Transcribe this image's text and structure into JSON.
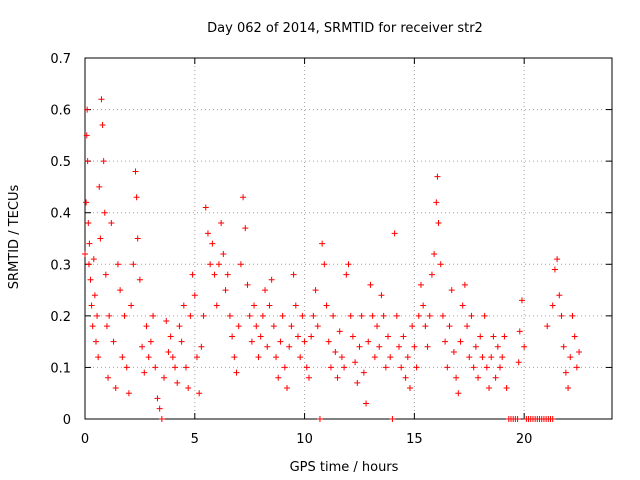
{
  "chart_data": {
    "type": "scatter",
    "title": "Day 062 of 2014, SRMTID for receiver str2",
    "xlabel": "GPS time / hours",
    "ylabel": "SRMTID / TECUs",
    "xlim": [
      0,
      24
    ],
    "ylim": [
      0,
      0.7
    ],
    "grid": true,
    "marker": "+",
    "color": "#ff0000",
    "x_ticks": [
      0,
      5,
      10,
      15,
      20
    ],
    "x_tick_labels": [
      "0",
      "5",
      "10",
      "15",
      "20"
    ],
    "y_ticks": [
      0,
      0.1,
      0.2,
      0.3,
      0.4,
      0.5,
      0.6,
      0.7
    ],
    "y_tick_labels": [
      "0",
      "0.1",
      "0.2",
      "0.3",
      "0.4",
      "0.5",
      "0.6",
      "0.7"
    ],
    "series": [
      {
        "name": "SRMTID",
        "points": [
          [
            0.0,
            0.32
          ],
          [
            0.05,
            0.42
          ],
          [
            0.08,
            0.55
          ],
          [
            0.1,
            0.6
          ],
          [
            0.12,
            0.5
          ],
          [
            0.15,
            0.38
          ],
          [
            0.18,
            0.3
          ],
          [
            0.2,
            0.34
          ],
          [
            0.25,
            0.27
          ],
          [
            0.3,
            0.22
          ],
          [
            0.35,
            0.18
          ],
          [
            0.4,
            0.31
          ],
          [
            0.45,
            0.24
          ],
          [
            0.5,
            0.15
          ],
          [
            0.55,
            0.2
          ],
          [
            0.6,
            0.12
          ],
          [
            0.65,
            0.45
          ],
          [
            0.7,
            0.35
          ],
          [
            0.75,
            0.62
          ],
          [
            0.8,
            0.57
          ],
          [
            0.85,
            0.5
          ],
          [
            0.9,
            0.4
          ],
          [
            0.95,
            0.28
          ],
          [
            1.0,
            0.18
          ],
          [
            1.05,
            0.08
          ],
          [
            1.1,
            0.2
          ],
          [
            1.2,
            0.38
          ],
          [
            1.3,
            0.15
          ],
          [
            1.4,
            0.06
          ],
          [
            1.5,
            0.3
          ],
          [
            1.6,
            0.25
          ],
          [
            1.7,
            0.12
          ],
          [
            1.8,
            0.2
          ],
          [
            1.9,
            0.1
          ],
          [
            2.0,
            0.05
          ],
          [
            2.1,
            0.22
          ],
          [
            2.2,
            0.3
          ],
          [
            2.3,
            0.48
          ],
          [
            2.35,
            0.43
          ],
          [
            2.4,
            0.35
          ],
          [
            2.5,
            0.27
          ],
          [
            2.6,
            0.14
          ],
          [
            2.7,
            0.09
          ],
          [
            2.8,
            0.18
          ],
          [
            2.9,
            0.12
          ],
          [
            3.0,
            0.15
          ],
          [
            3.1,
            0.2
          ],
          [
            3.2,
            0.1
          ],
          [
            3.3,
            0.04
          ],
          [
            3.4,
            0.02
          ],
          [
            3.5,
            0.0
          ],
          [
            3.6,
            0.08
          ],
          [
            3.7,
            0.19
          ],
          [
            3.8,
            0.13
          ],
          [
            3.9,
            0.16
          ],
          [
            4.0,
            0.12
          ],
          [
            4.1,
            0.1
          ],
          [
            4.2,
            0.07
          ],
          [
            4.3,
            0.18
          ],
          [
            4.4,
            0.15
          ],
          [
            4.5,
            0.22
          ],
          [
            4.6,
            0.1
          ],
          [
            4.7,
            0.06
          ],
          [
            4.8,
            0.2
          ],
          [
            4.9,
            0.28
          ],
          [
            5.0,
            0.24
          ],
          [
            5.1,
            0.12
          ],
          [
            5.2,
            0.05
          ],
          [
            5.3,
            0.14
          ],
          [
            5.4,
            0.2
          ],
          [
            5.5,
            0.41
          ],
          [
            5.6,
            0.36
          ],
          [
            5.7,
            0.3
          ],
          [
            5.8,
            0.34
          ],
          [
            5.9,
            0.28
          ],
          [
            6.0,
            0.22
          ],
          [
            6.1,
            0.3
          ],
          [
            6.2,
            0.38
          ],
          [
            6.3,
            0.32
          ],
          [
            6.4,
            0.25
          ],
          [
            6.5,
            0.28
          ],
          [
            6.6,
            0.2
          ],
          [
            6.7,
            0.16
          ],
          [
            6.8,
            0.12
          ],
          [
            6.9,
            0.09
          ],
          [
            7.0,
            0.18
          ],
          [
            7.1,
            0.3
          ],
          [
            7.2,
            0.43
          ],
          [
            7.3,
            0.37
          ],
          [
            7.4,
            0.26
          ],
          [
            7.5,
            0.2
          ],
          [
            7.6,
            0.15
          ],
          [
            7.7,
            0.22
          ],
          [
            7.8,
            0.18
          ],
          [
            7.9,
            0.12
          ],
          [
            8.0,
            0.16
          ],
          [
            8.1,
            0.2
          ],
          [
            8.2,
            0.25
          ],
          [
            8.3,
            0.14
          ],
          [
            8.4,
            0.22
          ],
          [
            8.5,
            0.27
          ],
          [
            8.6,
            0.18
          ],
          [
            8.7,
            0.12
          ],
          [
            8.8,
            0.08
          ],
          [
            8.9,
            0.15
          ],
          [
            9.0,
            0.2
          ],
          [
            9.1,
            0.1
          ],
          [
            9.2,
            0.06
          ],
          [
            9.3,
            0.14
          ],
          [
            9.4,
            0.18
          ],
          [
            9.5,
            0.28
          ],
          [
            9.6,
            0.22
          ],
          [
            9.7,
            0.16
          ],
          [
            9.8,
            0.12
          ],
          [
            9.9,
            0.2
          ],
          [
            10.0,
            0.15
          ],
          [
            10.1,
            0.1
          ],
          [
            10.2,
            0.08
          ],
          [
            10.3,
            0.16
          ],
          [
            10.4,
            0.2
          ],
          [
            10.5,
            0.25
          ],
          [
            10.6,
            0.18
          ],
          [
            10.7,
            0.0
          ],
          [
            10.8,
            0.34
          ],
          [
            10.9,
            0.3
          ],
          [
            11.0,
            0.22
          ],
          [
            11.1,
            0.15
          ],
          [
            11.2,
            0.1
          ],
          [
            11.3,
            0.2
          ],
          [
            11.4,
            0.13
          ],
          [
            11.5,
            0.08
          ],
          [
            11.6,
            0.17
          ],
          [
            11.7,
            0.12
          ],
          [
            11.8,
            0.1
          ],
          [
            11.9,
            0.28
          ],
          [
            12.0,
            0.3
          ],
          [
            12.1,
            0.2
          ],
          [
            12.2,
            0.16
          ],
          [
            12.3,
            0.11
          ],
          [
            12.4,
            0.07
          ],
          [
            12.5,
            0.14
          ],
          [
            12.6,
            0.2
          ],
          [
            12.7,
            0.09
          ],
          [
            12.8,
            0.03
          ],
          [
            12.9,
            0.15
          ],
          [
            13.0,
            0.26
          ],
          [
            13.1,
            0.2
          ],
          [
            13.2,
            0.12
          ],
          [
            13.3,
            0.18
          ],
          [
            13.4,
            0.14
          ],
          [
            13.5,
            0.24
          ],
          [
            13.6,
            0.2
          ],
          [
            13.7,
            0.1
          ],
          [
            13.8,
            0.16
          ],
          [
            13.9,
            0.12
          ],
          [
            14.0,
            0.0
          ],
          [
            14.1,
            0.36
          ],
          [
            14.2,
            0.2
          ],
          [
            14.3,
            0.14
          ],
          [
            14.4,
            0.1
          ],
          [
            14.5,
            0.16
          ],
          [
            14.6,
            0.08
          ],
          [
            14.7,
            0.12
          ],
          [
            14.8,
            0.06
          ],
          [
            14.9,
            0.18
          ],
          [
            15.0,
            0.14
          ],
          [
            15.1,
            0.1
          ],
          [
            15.2,
            0.2
          ],
          [
            15.3,
            0.26
          ],
          [
            15.4,
            0.22
          ],
          [
            15.5,
            0.18
          ],
          [
            15.6,
            0.14
          ],
          [
            15.7,
            0.2
          ],
          [
            15.8,
            0.28
          ],
          [
            15.9,
            0.32
          ],
          [
            16.0,
            0.42
          ],
          [
            16.05,
            0.47
          ],
          [
            16.1,
            0.38
          ],
          [
            16.2,
            0.3
          ],
          [
            16.3,
            0.2
          ],
          [
            16.4,
            0.15
          ],
          [
            16.5,
            0.1
          ],
          [
            16.6,
            0.18
          ],
          [
            16.7,
            0.25
          ],
          [
            16.8,
            0.13
          ],
          [
            16.9,
            0.08
          ],
          [
            17.0,
            0.05
          ],
          [
            17.1,
            0.15
          ],
          [
            17.2,
            0.22
          ],
          [
            17.3,
            0.26
          ],
          [
            17.4,
            0.18
          ],
          [
            17.5,
            0.12
          ],
          [
            17.6,
            0.2
          ],
          [
            17.7,
            0.1
          ],
          [
            17.8,
            0.14
          ],
          [
            17.9,
            0.08
          ],
          [
            18.0,
            0.16
          ],
          [
            18.1,
            0.12
          ],
          [
            18.2,
            0.2
          ],
          [
            18.3,
            0.1
          ],
          [
            18.4,
            0.06
          ],
          [
            18.5,
            0.12
          ],
          [
            18.6,
            0.16
          ],
          [
            18.7,
            0.08
          ],
          [
            18.8,
            0.14
          ],
          [
            18.9,
            0.1
          ],
          [
            19.0,
            0.12
          ],
          [
            19.1,
            0.16
          ],
          [
            19.2,
            0.06
          ],
          [
            19.3,
            0.0
          ],
          [
            19.4,
            0.0
          ],
          [
            19.5,
            0.0
          ],
          [
            19.6,
            0.0
          ],
          [
            19.7,
            0.0
          ],
          [
            19.75,
            0.11
          ],
          [
            19.8,
            0.17
          ],
          [
            19.9,
            0.23
          ],
          [
            20.0,
            0.14
          ],
          [
            20.1,
            0.0
          ],
          [
            20.2,
            0.0
          ],
          [
            20.3,
            0.0
          ],
          [
            20.4,
            0.0
          ],
          [
            20.5,
            0.0
          ],
          [
            20.6,
            0.0
          ],
          [
            20.7,
            0.0
          ],
          [
            20.8,
            0.0
          ],
          [
            20.9,
            0.0
          ],
          [
            21.0,
            0.0
          ],
          [
            21.1,
            0.0
          ],
          [
            21.2,
            0.0
          ],
          [
            21.3,
            0.0
          ],
          [
            21.05,
            0.18
          ],
          [
            21.3,
            0.22
          ],
          [
            21.4,
            0.29
          ],
          [
            21.5,
            0.31
          ],
          [
            21.6,
            0.24
          ],
          [
            21.7,
            0.2
          ],
          [
            21.8,
            0.14
          ],
          [
            21.9,
            0.09
          ],
          [
            22.0,
            0.06
          ],
          [
            22.1,
            0.12
          ],
          [
            22.2,
            0.2
          ],
          [
            22.3,
            0.16
          ],
          [
            22.4,
            0.1
          ],
          [
            22.5,
            0.13
          ]
        ]
      }
    ]
  }
}
